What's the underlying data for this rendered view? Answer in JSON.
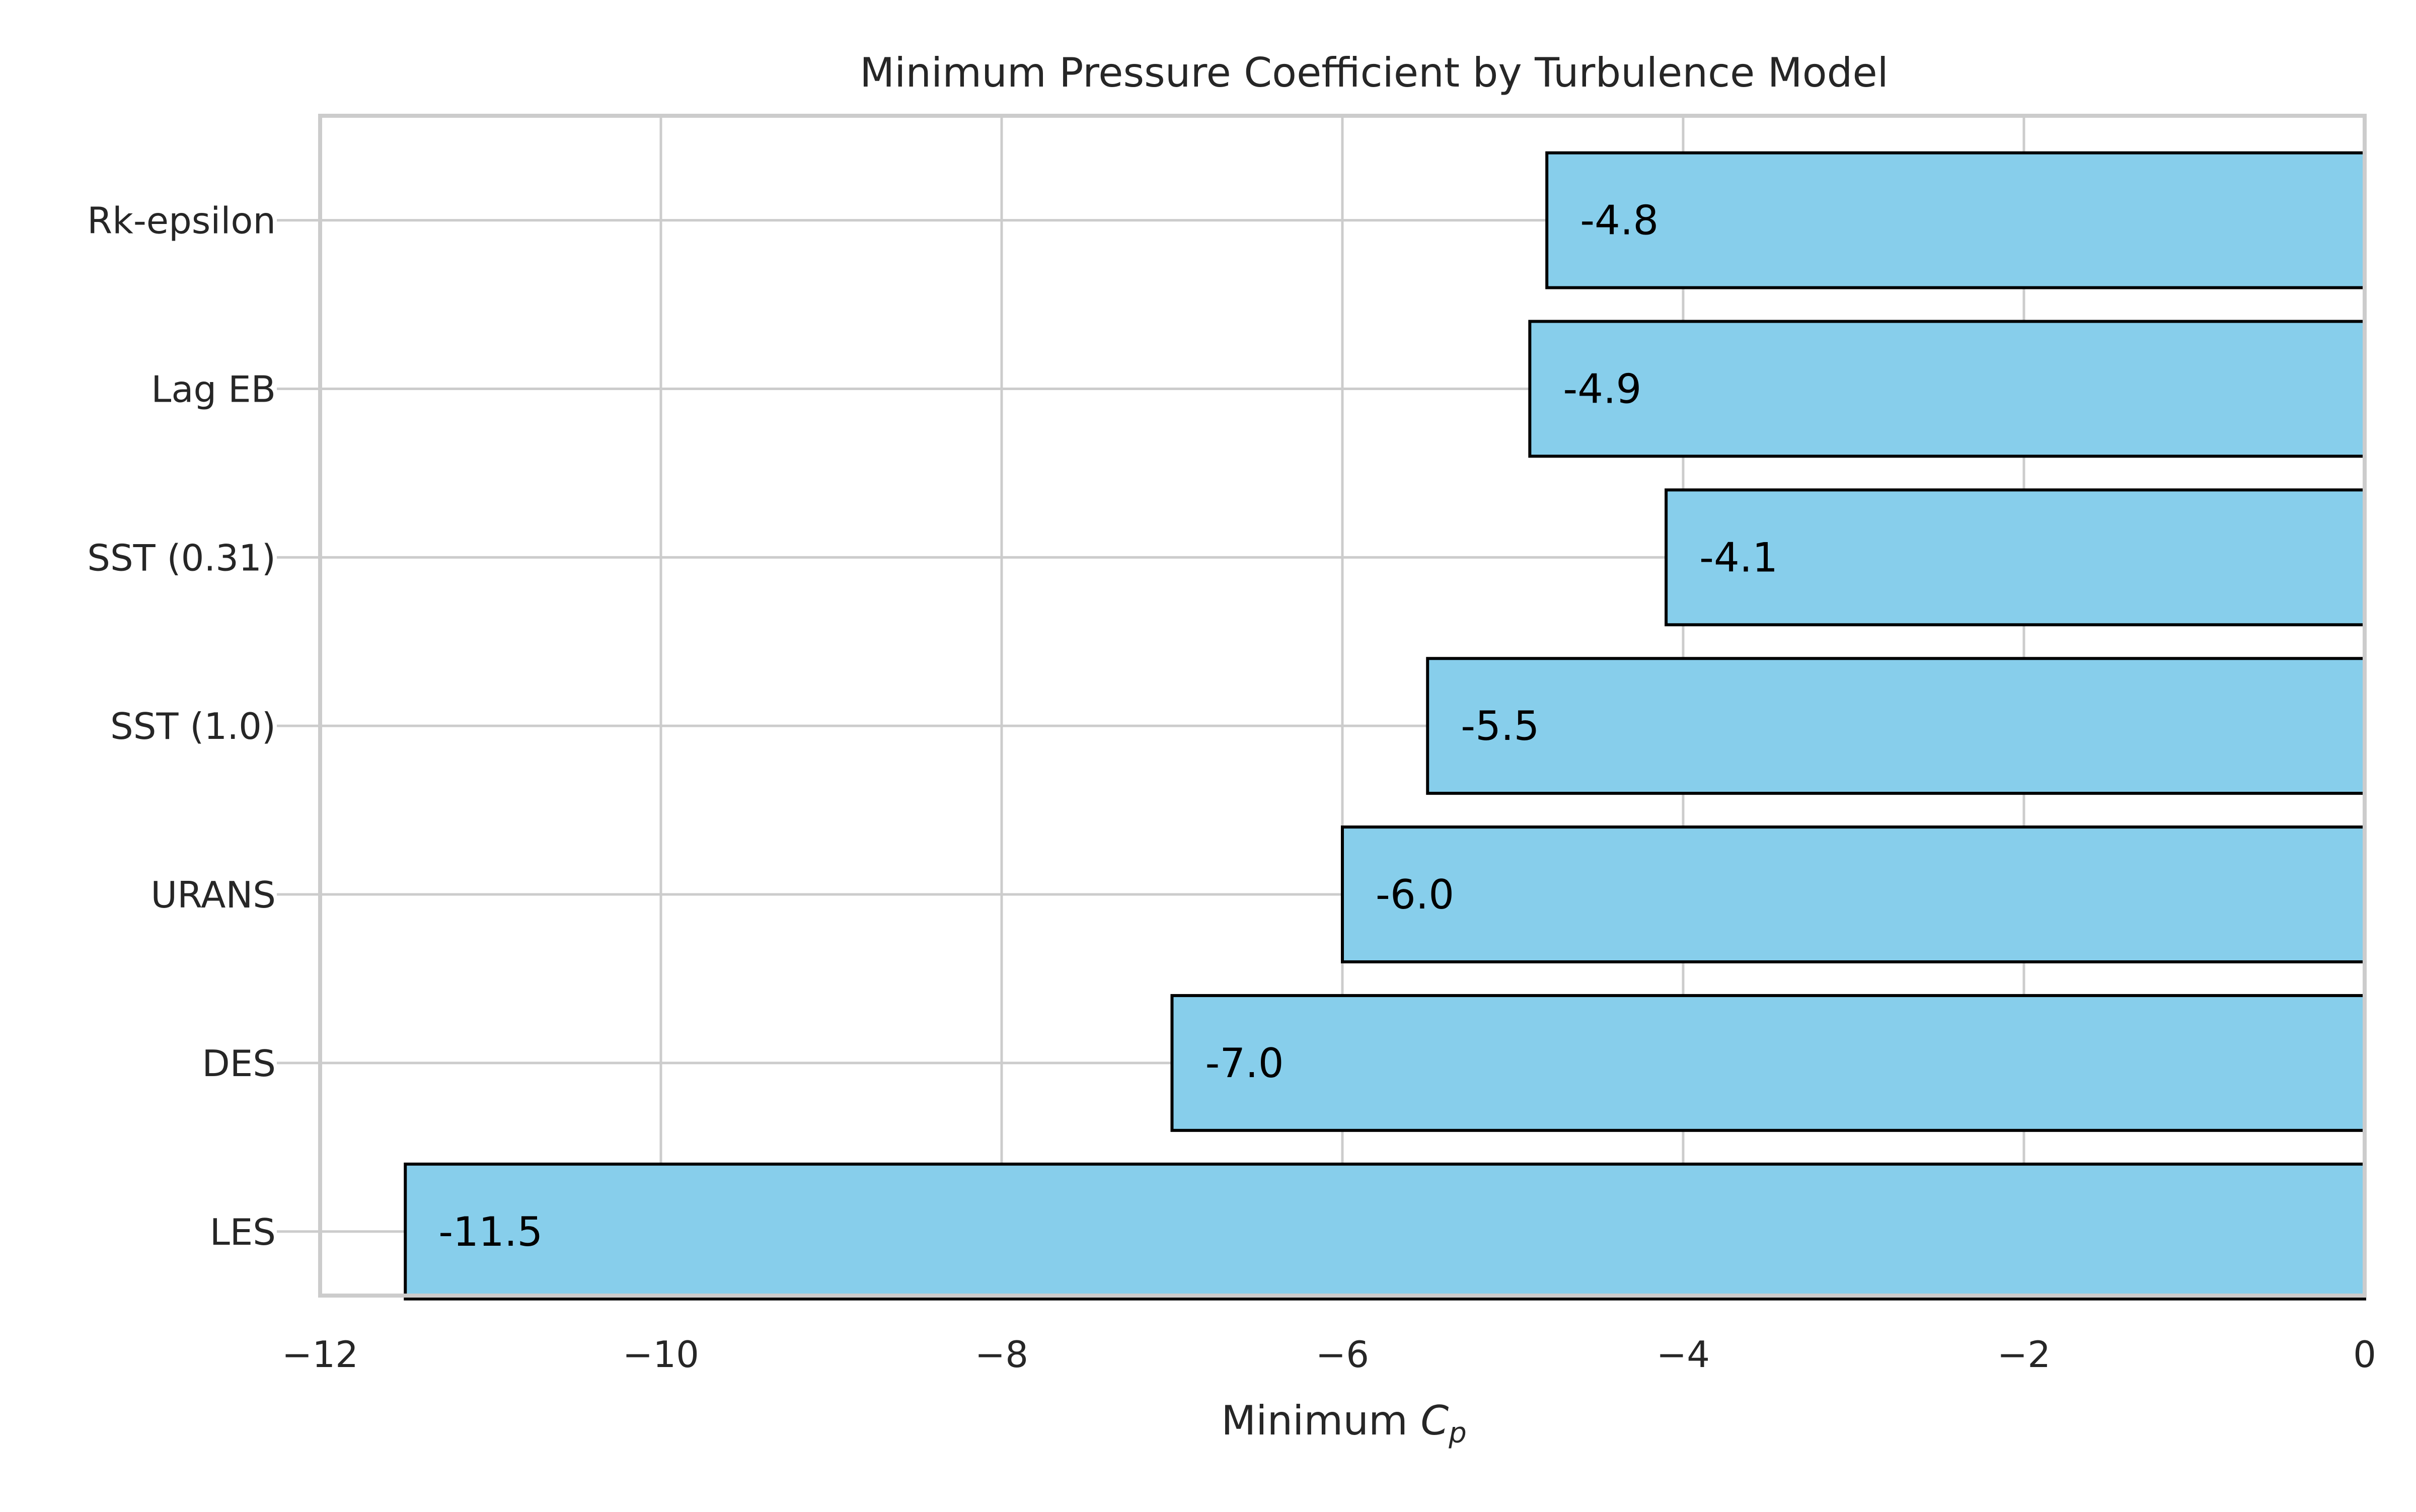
{
  "chart_data": {
    "type": "bar",
    "orientation": "horizontal",
    "title": "Minimum Pressure Coefficient by Turbulence Model",
    "xlabel_prefix": "Minimum ",
    "xlabel_symbol": "C",
    "xlabel_subscript": "p",
    "ylabel": "",
    "xlim": [
      -12,
      0
    ],
    "xticks": [
      -12,
      -10,
      -8,
      -6,
      -4,
      -2,
      0
    ],
    "xtick_labels": [
      "−12",
      "−10",
      "−8",
      "−6",
      "−4",
      "−2",
      "0"
    ],
    "categories": [
      "LES",
      "DES",
      "URANS",
      "SST (1.0)",
      "SST (0.31)",
      "Lag EB",
      "Rk-epsilon"
    ],
    "values": [
      -11.5,
      -7.0,
      -6.0,
      -5.5,
      -4.1,
      -4.9,
      -4.8
    ],
    "data_labels": [
      "-11.5",
      "-7.0",
      "-6.0",
      "-5.5",
      "-4.1",
      "-4.9",
      "-4.8"
    ],
    "grid": true,
    "bar_color": "#87ceeb",
    "bar_edge_color": "#000000",
    "legend": "none"
  }
}
